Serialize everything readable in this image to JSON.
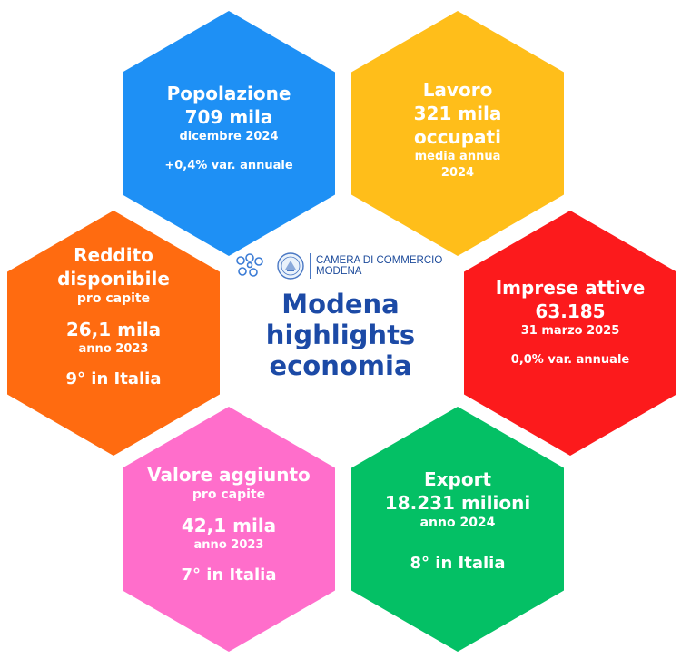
{
  "colors": {
    "popolazione": "#1E90F5",
    "lavoro": "#FFBE1A",
    "reddito": "#FF6B10",
    "imprese": "#FC1A1C",
    "valore": "#FF6ECB",
    "export": "#04C065",
    "brand_blue": "#1C4AA6"
  },
  "logo": {
    "icon_left": "network-dots-icon",
    "icon_right": "seal-icon",
    "line1": "CAMERA DI COMMERCIO",
    "line2": "MODENA"
  },
  "title": {
    "line1": "Modena",
    "line2": "highlights",
    "line3": "economia"
  },
  "popolazione": {
    "title": "Popolazione",
    "value": "709 mila",
    "date": "dicembre 2024",
    "change": "+0,4% var. annuale"
  },
  "lavoro": {
    "title": "Lavoro",
    "value_line1": "321 mila",
    "value_line2": "occupati",
    "note_line1": "media annua",
    "note_line2": "2024"
  },
  "reddito": {
    "title_line1": "Reddito",
    "title_line2": "disponibile",
    "sub": "pro capite",
    "value": "26,1 mila",
    "year": "anno 2023",
    "rank": "9° in Italia"
  },
  "imprese": {
    "title": "Imprese attive",
    "value": "63.185",
    "date": "31 marzo 2025",
    "change": "0,0% var. annuale"
  },
  "valore": {
    "title": "Valore aggiunto",
    "sub": "pro capite",
    "value": "42,1 mila",
    "year": "anno 2023",
    "rank": "7° in Italia"
  },
  "export": {
    "title": "Export",
    "value": "18.231 milioni",
    "year": "anno 2024",
    "rank": "8° in Italia"
  }
}
